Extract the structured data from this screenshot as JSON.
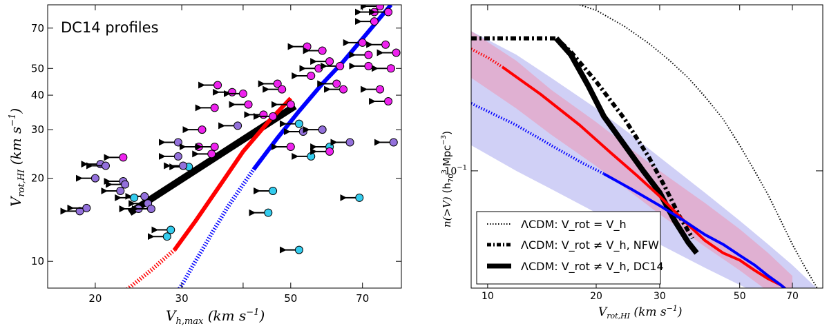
{
  "chart_data": [
    {
      "type": "scatter",
      "panel": "left",
      "annotation": "DC14 profiles",
      "xlabel": "V_h,max   (km s^-1)",
      "ylabel": "V_rot,HI   (km s^-1)",
      "xscale": "log",
      "yscale": "log",
      "xlim": [
        16,
        84
      ],
      "ylim": [
        8,
        85
      ],
      "xticks": [
        20,
        30,
        40,
        50,
        70
      ],
      "xtick_labels": [
        "20",
        "30",
        "",
        "50",
        "70"
      ],
      "yticks": [
        10,
        20,
        30,
        40,
        50,
        70
      ],
      "colors": {
        "black": "#000000",
        "red": "#ff0000",
        "blue": "#0000ff",
        "magenta": "#ee22ee",
        "purple": "#9370db",
        "cyan": "#33ccee"
      },
      "series": [
        {
          "name": "DC14 relation",
          "color": "black",
          "style": "solid",
          "x": [
            23.5,
            51
          ],
          "y": [
            15.0,
            36.5
          ]
        },
        {
          "name": "red relation",
          "color": "red",
          "style": "solid",
          "x": [
            29,
            32,
            36,
            40,
            45,
            50
          ],
          "y": [
            11,
            14,
            19,
            25,
            32,
            39
          ]
        },
        {
          "name": "red relation extrapolated",
          "color": "red",
          "style": "dotted",
          "x": [
            23,
            26,
            29
          ],
          "y": [
            7.8,
            9.3,
            11
          ]
        },
        {
          "name": "blue relation",
          "color": "blue",
          "style": "solid",
          "x": [
            42,
            47,
            52,
            58,
            64,
            72,
            80
          ],
          "y": [
            21.5,
            28,
            35,
            44,
            53,
            68,
            85
          ]
        },
        {
          "name": "blue relation extrapolated",
          "color": "blue",
          "style": "dotted",
          "x": [
            29.5,
            33,
            37,
            42
          ],
          "y": [
            7.8,
            11,
            15.5,
            21.5
          ]
        }
      ],
      "points": [
        {
          "x": 18.6,
          "y": 15.2,
          "c": "purple"
        },
        {
          "x": 19.2,
          "y": 15.6,
          "c": "purple"
        },
        {
          "x": 20,
          "y": 20,
          "c": "purple"
        },
        {
          "x": 20.5,
          "y": 22.5,
          "c": "purple"
        },
        {
          "x": 21,
          "y": 22.2,
          "c": "purple"
        },
        {
          "x": 22.8,
          "y": 23.8,
          "c": "magenta"
        },
        {
          "x": 22.5,
          "y": 18,
          "c": "purple"
        },
        {
          "x": 22.8,
          "y": 19.5,
          "c": "purple"
        },
        {
          "x": 23,
          "y": 19,
          "c": "purple"
        },
        {
          "x": 24.5,
          "y": 15.5,
          "c": "purple"
        },
        {
          "x": 25.2,
          "y": 17.2,
          "c": "purple"
        },
        {
          "x": 25.6,
          "y": 16.2,
          "c": "purple"
        },
        {
          "x": 26,
          "y": 15.5,
          "c": "purple"
        },
        {
          "x": 24,
          "y": 17,
          "c": "cyan"
        },
        {
          "x": 28,
          "y": 12.3,
          "c": "cyan"
        },
        {
          "x": 28.5,
          "y": 13,
          "c": "cyan"
        },
        {
          "x": 31,
          "y": 22,
          "c": "cyan"
        },
        {
          "x": 30.2,
          "y": 22.2,
          "c": "purple"
        },
        {
          "x": 29.5,
          "y": 27,
          "c": "purple"
        },
        {
          "x": 29.5,
          "y": 24,
          "c": "purple"
        },
        {
          "x": 32.5,
          "y": 26,
          "c": "magenta"
        },
        {
          "x": 33,
          "y": 30,
          "c": "magenta"
        },
        {
          "x": 34.5,
          "y": 24.5,
          "c": "magenta"
        },
        {
          "x": 35,
          "y": 26,
          "c": "magenta"
        },
        {
          "x": 35,
          "y": 36,
          "c": "magenta"
        },
        {
          "x": 35.5,
          "y": 43.5,
          "c": "magenta"
        },
        {
          "x": 38,
          "y": 41,
          "c": "magenta"
        },
        {
          "x": 40,
          "y": 40.5,
          "c": "magenta"
        },
        {
          "x": 41,
          "y": 37,
          "c": "magenta"
        },
        {
          "x": 39,
          "y": 31,
          "c": "purple"
        },
        {
          "x": 44,
          "y": 34,
          "c": "magenta"
        },
        {
          "x": 46,
          "y": 33.5,
          "c": "magenta"
        },
        {
          "x": 45,
          "y": 15,
          "c": "cyan"
        },
        {
          "x": 46,
          "y": 18,
          "c": "cyan"
        },
        {
          "x": 47,
          "y": 44,
          "c": "magenta"
        },
        {
          "x": 48,
          "y": 42,
          "c": "magenta"
        },
        {
          "x": 50,
          "y": 37,
          "c": "magenta"
        },
        {
          "x": 50,
          "y": 26,
          "c": "magenta"
        },
        {
          "x": 52,
          "y": 31.5,
          "c": "cyan"
        },
        {
          "x": 53,
          "y": 29.5,
          "c": "purple"
        },
        {
          "x": 52,
          "y": 11,
          "c": "cyan"
        },
        {
          "x": 54,
          "y": 60,
          "c": "magenta"
        },
        {
          "x": 55,
          "y": 24,
          "c": "cyan"
        },
        {
          "x": 55,
          "y": 47,
          "c": "magenta"
        },
        {
          "x": 58,
          "y": 58,
          "c": "magenta"
        },
        {
          "x": 57,
          "y": 50,
          "c": "magenta"
        },
        {
          "x": 58,
          "y": 30,
          "c": "purple"
        },
        {
          "x": 60,
          "y": 53,
          "c": "magenta"
        },
        {
          "x": 60,
          "y": 26,
          "c": "cyan"
        },
        {
          "x": 62,
          "y": 44,
          "c": "magenta"
        },
        {
          "x": 63,
          "y": 51,
          "c": "magenta"
        },
        {
          "x": 64,
          "y": 42,
          "c": "magenta"
        },
        {
          "x": 60,
          "y": 25,
          "c": "magenta"
        },
        {
          "x": 66,
          "y": 27,
          "c": "purple"
        },
        {
          "x": 69,
          "y": 17,
          "c": "cyan"
        },
        {
          "x": 70,
          "y": 62,
          "c": "magenta"
        },
        {
          "x": 72,
          "y": 56,
          "c": "magenta"
        },
        {
          "x": 72,
          "y": 51,
          "c": "magenta"
        },
        {
          "x": 74,
          "y": 80,
          "c": "magenta"
        },
        {
          "x": 76,
          "y": 84,
          "c": "magenta"
        },
        {
          "x": 78,
          "y": 61,
          "c": "magenta"
        },
        {
          "x": 80,
          "y": 50,
          "c": "magenta"
        },
        {
          "x": 79,
          "y": 38,
          "c": "magenta"
        },
        {
          "x": 76,
          "y": 42,
          "c": "magenta"
        },
        {
          "x": 82,
          "y": 57,
          "c": "magenta"
        },
        {
          "x": 81,
          "y": 27,
          "c": "purple"
        },
        {
          "x": 74,
          "y": 74,
          "c": "magenta"
        },
        {
          "x": 79,
          "y": 80,
          "c": "magenta"
        }
      ]
    },
    {
      "type": "line",
      "panel": "right",
      "xlabel": "V_rot,HI   (km s^-1)",
      "ylabel": "n(>V)   (h_70^3 Mpc^-3)",
      "xscale": "log",
      "yscale": "log",
      "xlim": [
        9,
        85
      ],
      "ylim": [
        0.03,
        0.55
      ],
      "xticks": [
        10,
        20,
        30,
        50,
        70
      ],
      "yticks": [
        0.1
      ],
      "ytick_labels": [
        "10^-1"
      ],
      "legend": "bottom-left",
      "legend_labels": [
        "ΛCDM: V_rot = V_h",
        "ΛCDM: V_rot ≠ V_h, NFW",
        "ΛCDM: V_rot ≠ V_h, DC14"
      ],
      "colors": {
        "observed_fill": "#c8c8f5",
        "observed_line": "#0000ff",
        "model_fill": "#e5a6c6",
        "model_line": "#ff0000"
      },
      "series": [
        {
          "name": "ΛCDM: V_rot = V_h",
          "style": "dotted",
          "color": "#000000",
          "x": [
            18,
            20,
            24,
            28,
            32,
            36,
            40,
            45,
            50,
            55,
            60,
            65,
            70,
            76,
            82
          ],
          "y": [
            0.55,
            0.52,
            0.44,
            0.37,
            0.31,
            0.26,
            0.215,
            0.17,
            0.13,
            0.1,
            0.078,
            0.06,
            0.047,
            0.037,
            0.03
          ]
        },
        {
          "name": "ΛCDM: V_rot ≠ V_h, NFW",
          "style": "dashdot",
          "color": "#000000",
          "x": [
            9,
            12,
            15.5,
            17,
            20,
            24,
            28,
            31,
            34,
            37
          ],
          "y": [
            0.39,
            0.39,
            0.39,
            0.34,
            0.25,
            0.17,
            0.115,
            0.085,
            0.063,
            0.05
          ]
        },
        {
          "name": "ΛCDM: V_rot ≠ V_h, DC14",
          "style": "solid",
          "color": "#000000",
          "x": [
            15.5,
            17,
            19,
            21,
            24,
            27,
            30,
            33,
            36,
            38
          ],
          "y": [
            0.39,
            0.33,
            0.24,
            0.175,
            0.13,
            0.1,
            0.08,
            0.06,
            0.048,
            0.043
          ]
        },
        {
          "name": "red model",
          "style": "solid",
          "color": "#ff0000",
          "x": [
            11,
            14,
            18,
            22,
            26,
            30,
            35,
            40,
            45,
            50,
            55,
            60,
            65,
            70
          ],
          "y": [
            0.29,
            0.22,
            0.16,
            0.12,
            0.095,
            0.077,
            0.06,
            0.049,
            0.043,
            0.04,
            0.036,
            0.033,
            0.031,
            0.028
          ]
        },
        {
          "name": "red model extrapolated",
          "style": "dotted",
          "color": "#ff0000",
          "x": [
            9,
            10,
            11
          ],
          "y": [
            0.35,
            0.32,
            0.29
          ]
        },
        {
          "name": "blue observed",
          "style": "solid",
          "color": "#0000ff",
          "x": [
            21,
            25,
            30,
            35,
            40,
            45,
            50,
            55,
            60,
            65,
            70
          ],
          "y": [
            0.097,
            0.083,
            0.07,
            0.06,
            0.052,
            0.047,
            0.042,
            0.038,
            0.034,
            0.031,
            0.028
          ]
        },
        {
          "name": "blue observed extrapolated",
          "style": "dotted",
          "color": "#0000ff",
          "x": [
            9,
            12,
            15,
            18,
            21
          ],
          "y": [
            0.2,
            0.16,
            0.13,
            0.11,
            0.097
          ]
        }
      ],
      "bands": [
        {
          "name": "observed band",
          "fill": "observed_fill",
          "x": [
            9,
            12,
            15,
            20,
            25,
            30,
            40,
            50,
            60,
            70,
            80,
            84
          ],
          "upper": [
            0.42,
            0.33,
            0.26,
            0.19,
            0.145,
            0.115,
            0.08,
            0.06,
            0.047,
            0.038,
            0.031,
            0.029
          ],
          "lower": [
            0.13,
            0.1,
            0.083,
            0.065,
            0.055,
            0.047,
            0.037,
            0.031,
            0.027,
            0.024,
            0.022,
            0.021
          ]
        },
        {
          "name": "model band",
          "fill": "model_fill",
          "x": [
            9,
            12,
            15,
            20,
            25,
            30,
            40,
            50,
            60,
            70
          ],
          "upper": [
            0.42,
            0.31,
            0.23,
            0.165,
            0.125,
            0.1,
            0.072,
            0.055,
            0.043,
            0.034
          ],
          "lower": [
            0.26,
            0.19,
            0.145,
            0.105,
            0.08,
            0.064,
            0.046,
            0.036,
            0.029,
            0.025
          ]
        }
      ]
    }
  ]
}
